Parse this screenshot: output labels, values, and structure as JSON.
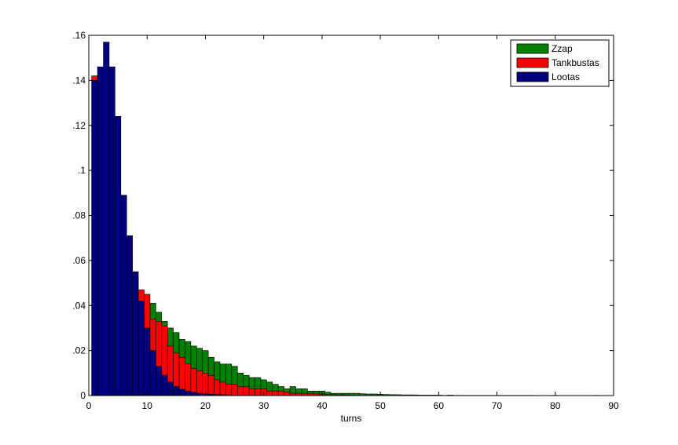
{
  "chart_data": {
    "type": "bar",
    "title": "",
    "xlabel": "turns",
    "ylabel": "",
    "xlim": [
      0,
      90
    ],
    "ylim": [
      0,
      0.16
    ],
    "x_ticks": [
      0,
      10,
      20,
      30,
      40,
      50,
      60,
      70,
      80,
      90
    ],
    "x_tick_labels": [
      "0",
      "10",
      "20",
      "30",
      "40",
      "50",
      "60",
      "70",
      "80",
      "90"
    ],
    "y_ticks": [
      0,
      0.02,
      0.04,
      0.06,
      0.08,
      0.1,
      0.12,
      0.14,
      0.16
    ],
    "y_tick_labels": [
      "0",
      ".02",
      ".04",
      ".06",
      ".08",
      ".1",
      ".12",
      ".14",
      ".16"
    ],
    "grid": false,
    "legend_position": "top-right",
    "bar_width": 1,
    "series": [
      {
        "name": "Zzap",
        "color": "#007f00",
        "x": [
          1,
          2,
          3,
          4,
          5,
          6,
          7,
          8,
          9,
          10,
          11,
          12,
          13,
          14,
          15,
          16,
          17,
          18,
          19,
          20,
          21,
          22,
          23,
          24,
          25,
          26,
          27,
          28,
          29,
          30,
          31,
          32,
          33,
          34,
          35,
          36,
          37,
          38,
          39,
          40,
          41,
          42,
          43,
          44,
          45,
          46,
          47,
          48,
          49,
          50,
          51,
          52,
          53,
          54,
          55,
          56,
          57,
          58,
          59,
          60,
          61,
          62,
          63,
          64,
          65,
          66,
          67,
          68,
          69,
          70,
          71,
          72,
          73,
          74,
          75,
          76,
          77,
          78,
          79,
          80,
          81,
          82,
          83,
          84,
          85,
          86,
          87
        ],
        "values": [
          0.001,
          0.002,
          0.003,
          0.005,
          0.008,
          0.012,
          0.016,
          0.021,
          0.026,
          0.035,
          0.041,
          0.037,
          0.033,
          0.03,
          0.028,
          0.025,
          0.024,
          0.022,
          0.021,
          0.02,
          0.017,
          0.015,
          0.014,
          0.014,
          0.013,
          0.01,
          0.009,
          0.008,
          0.008,
          0.007,
          0.006,
          0.005,
          0.004,
          0.003,
          0.004,
          0.003,
          0.003,
          0.002,
          0.002,
          0.002,
          0.0015,
          0.001,
          0.001,
          0.001,
          0.001,
          0.001,
          0.0008,
          0.0007,
          0.0007,
          0.0006,
          0.0005,
          0.0004,
          0.0004,
          0.0003,
          0.0003,
          0.0003,
          0.0002,
          0.0002,
          0.0002,
          0.0002,
          0.0001,
          0.0002,
          0.0001,
          0.0001,
          0.0001,
          0.0001,
          0.0001,
          0.0001,
          0.0001,
          0.0001,
          0.0001,
          0.0001,
          0.0001,
          0.0001,
          0.0001,
          0.0001,
          0,
          0,
          0,
          0.0001,
          0,
          0,
          0,
          0,
          0,
          0,
          0.0001
        ]
      },
      {
        "name": "Tankbustas",
        "color": "#ff0000",
        "x": [
          1,
          2,
          3,
          4,
          5,
          6,
          7,
          8,
          9,
          10,
          11,
          12,
          13,
          14,
          15,
          16,
          17,
          18,
          19,
          20,
          21,
          22,
          23,
          24,
          25,
          26,
          27,
          28,
          29,
          30,
          31,
          32,
          33,
          34,
          35,
          36,
          37,
          38,
          39,
          40,
          41,
          42,
          43,
          44,
          45,
          46,
          47,
          48,
          49,
          50
        ],
        "values": [
          0.142,
          0.139,
          0.12,
          0.1,
          0.085,
          0.072,
          0.062,
          0.053,
          0.047,
          0.045,
          0.034,
          0.033,
          0.031,
          0.022,
          0.019,
          0.017,
          0.014,
          0.012,
          0.011,
          0.01,
          0.009,
          0.007,
          0.006,
          0.005,
          0.005,
          0.004,
          0.004,
          0.003,
          0.003,
          0.003,
          0.002,
          0.002,
          0.002,
          0.0015,
          0.001,
          0.001,
          0.001,
          0.0008,
          0.0007,
          0.0006,
          0.0005,
          0.0004,
          0.0003,
          0.0003,
          0.0002,
          0.0002,
          0.0001,
          0.0001,
          0.0001,
          0.0001
        ]
      },
      {
        "name": "Lootas",
        "color": "#00007f",
        "x": [
          1,
          2,
          3,
          4,
          5,
          6,
          7,
          8,
          9,
          10,
          11,
          12,
          13,
          14,
          15,
          16,
          17,
          18,
          19,
          20,
          21,
          22,
          23,
          24,
          25,
          26,
          27,
          28,
          29,
          30
        ],
        "values": [
          0.14,
          0.146,
          0.157,
          0.146,
          0.124,
          0.089,
          0.071,
          0.055,
          0.042,
          0.03,
          0.02,
          0.013,
          0.009,
          0.006,
          0.004,
          0.0028,
          0.002,
          0.0015,
          0.001,
          0.0008,
          0.0006,
          0.0005,
          0.0004,
          0.0003,
          0.0002,
          0.0002,
          0.0001,
          0.0001,
          0.0001,
          0.0001
        ]
      }
    ]
  }
}
